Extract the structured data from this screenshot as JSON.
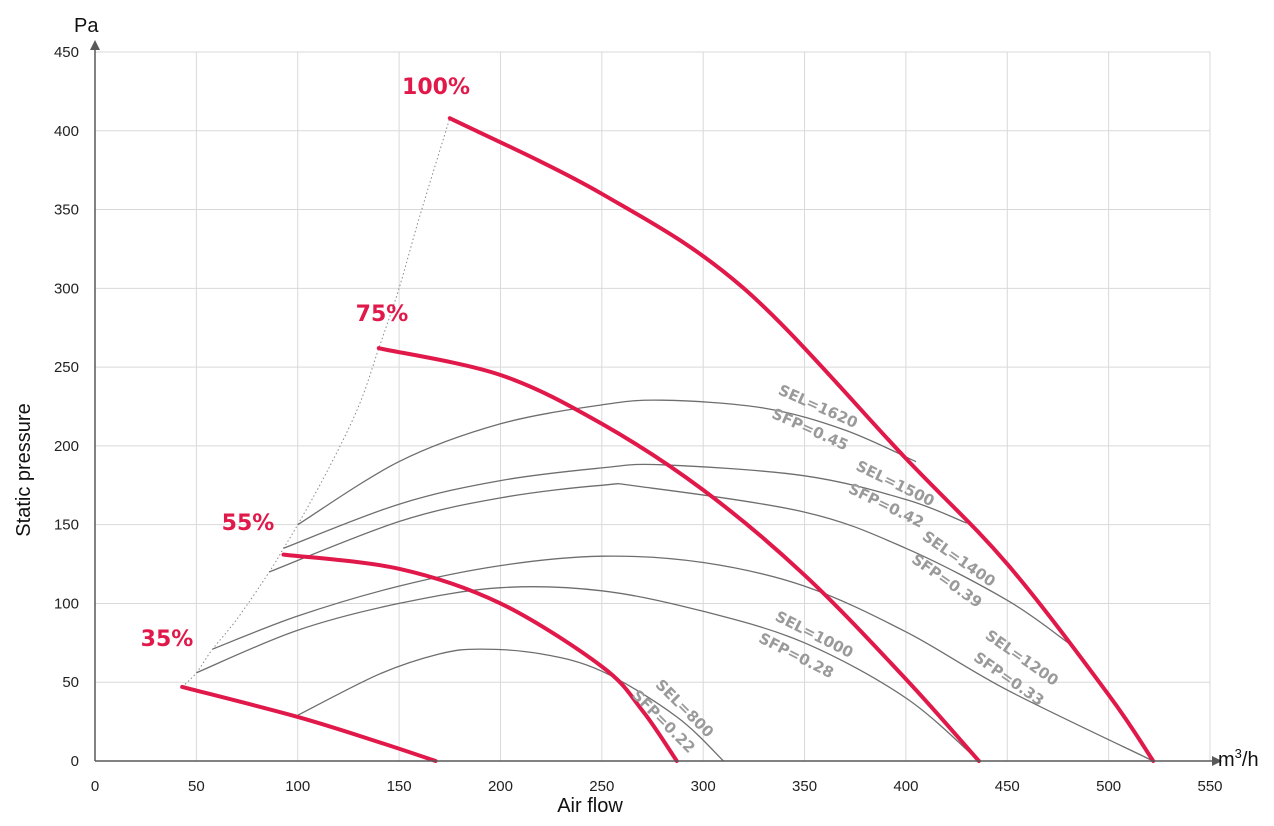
{
  "chart_data": {
    "type": "line",
    "title": "",
    "xlabel": "Air flow",
    "ylabel": "Static pressure",
    "x_unit": "m3/h",
    "y_unit": "Pa",
    "xlim": [
      0,
      550
    ],
    "ylim": [
      0,
      450
    ],
    "x_ticks": [
      "0",
      "50",
      "100",
      "150",
      "200",
      "250",
      "300",
      "350",
      "400",
      "450",
      "500",
      "550"
    ],
    "y_ticks": [
      "0",
      "50",
      "100",
      "150",
      "200",
      "250",
      "300",
      "350",
      "400",
      "450"
    ],
    "grid": true,
    "colors": {
      "fan_curve": "#e0194a",
      "sel_curve": "#6e6e6e",
      "sel_text": "#9a9a9a",
      "grid": "#d9d9d9",
      "axis": "#595959"
    },
    "fan_curves": [
      {
        "name": "100%",
        "points": [
          [
            175,
            408
          ],
          [
            250,
            360
          ],
          [
            320,
            300
          ],
          [
            400,
            192
          ],
          [
            450,
            125
          ],
          [
            500,
            42
          ],
          [
            522,
            0
          ]
        ]
      },
      {
        "name": "75%",
        "points": [
          [
            140,
            262
          ],
          [
            200,
            245
          ],
          [
            250,
            214
          ],
          [
            300,
            172
          ],
          [
            350,
            118
          ],
          [
            400,
            52
          ],
          [
            436,
            0
          ]
        ]
      },
      {
        "name": "55%",
        "points": [
          [
            93,
            131
          ],
          [
            150,
            122
          ],
          [
            200,
            100
          ],
          [
            250,
            60
          ],
          [
            270,
            32
          ],
          [
            287,
            0
          ]
        ]
      },
      {
        "name": "35%",
        "points": [
          [
            43,
            47
          ],
          [
            100,
            28
          ],
          [
            140,
            12
          ],
          [
            168,
            0
          ]
        ]
      }
    ],
    "sel_curves": [
      {
        "sel": "SEL=1620",
        "sfp": "SFP=0.45",
        "points": [
          [
            100,
            150
          ],
          [
            150,
            190
          ],
          [
            200,
            214
          ],
          [
            250,
            226
          ],
          [
            280,
            229
          ],
          [
            330,
            224
          ],
          [
            370,
            210
          ],
          [
            405,
            190
          ]
        ]
      },
      {
        "sel": "SEL=1500",
        "sfp": "SFP=0.42",
        "points": [
          [
            93,
            135
          ],
          [
            150,
            163
          ],
          [
            200,
            178
          ],
          [
            250,
            186
          ],
          [
            280,
            188
          ],
          [
            350,
            181
          ],
          [
            400,
            166
          ],
          [
            430,
            151
          ]
        ]
      },
      {
        "sel": "SEL=1400",
        "sfp": "SFP=0.39",
        "points": [
          [
            86,
            120
          ],
          [
            150,
            152
          ],
          [
            200,
            167
          ],
          [
            250,
            175
          ],
          [
            270,
            174
          ],
          [
            350,
            158
          ],
          [
            400,
            135
          ],
          [
            450,
            102
          ],
          [
            480,
            75
          ]
        ]
      },
      {
        "sel": "SEL=1200",
        "sfp": "SFP=0.33",
        "points": [
          [
            58,
            71
          ],
          [
            100,
            92
          ],
          [
            150,
            111
          ],
          [
            200,
            124
          ],
          [
            250,
            130
          ],
          [
            300,
            126
          ],
          [
            350,
            111
          ],
          [
            400,
            82
          ],
          [
            450,
            45
          ],
          [
            522,
            0
          ]
        ]
      },
      {
        "sel": "SEL=1000",
        "sfp": "SFP=0.28",
        "points": [
          [
            50,
            56
          ],
          [
            100,
            83
          ],
          [
            150,
            100
          ],
          [
            200,
            110
          ],
          [
            250,
            108
          ],
          [
            300,
            95
          ],
          [
            350,
            75
          ],
          [
            400,
            40
          ],
          [
            436,
            0
          ]
        ]
      },
      {
        "sel": "SEL=800",
        "sfp": "SFP=0.22",
        "points": [
          [
            100,
            29
          ],
          [
            140,
            55
          ],
          [
            170,
            68
          ],
          [
            190,
            71
          ],
          [
            220,
            68
          ],
          [
            250,
            57
          ],
          [
            287,
            28
          ],
          [
            310,
            0
          ]
        ]
      }
    ],
    "dotted_envelope": [
      [
        43,
        47
      ],
      [
        50,
        56
      ],
      [
        58,
        71
      ],
      [
        70,
        90
      ],
      [
        86,
        120
      ],
      [
        93,
        135
      ],
      [
        100,
        150
      ],
      [
        115,
        185
      ],
      [
        130,
        225
      ],
      [
        140,
        262
      ],
      [
        150,
        300
      ],
      [
        160,
        345
      ],
      [
        175,
        408
      ]
    ]
  }
}
